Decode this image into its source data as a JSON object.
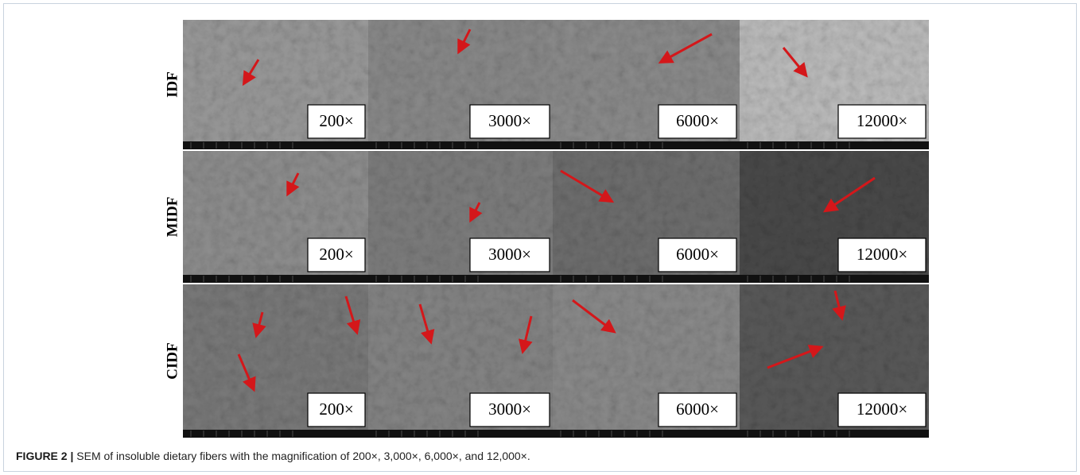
{
  "figure": {
    "rows": [
      {
        "label": "IDF",
        "panels": [
          "200×",
          "3000×",
          "6000×",
          "12000×"
        ]
      },
      {
        "label": "MIDF",
        "panels": [
          "200×",
          "3000×",
          "6000×",
          "12000×"
        ]
      },
      {
        "label": "CIDF",
        "panels": [
          "200×",
          "3000×",
          "6000×",
          "12000×"
        ]
      }
    ],
    "caption": {
      "label": "FIGURE 2 |",
      "text": "SEM of insoluble dietary fibers with the magnification of 200×, 3,000×, 6,000×, and 12,000×."
    }
  }
}
